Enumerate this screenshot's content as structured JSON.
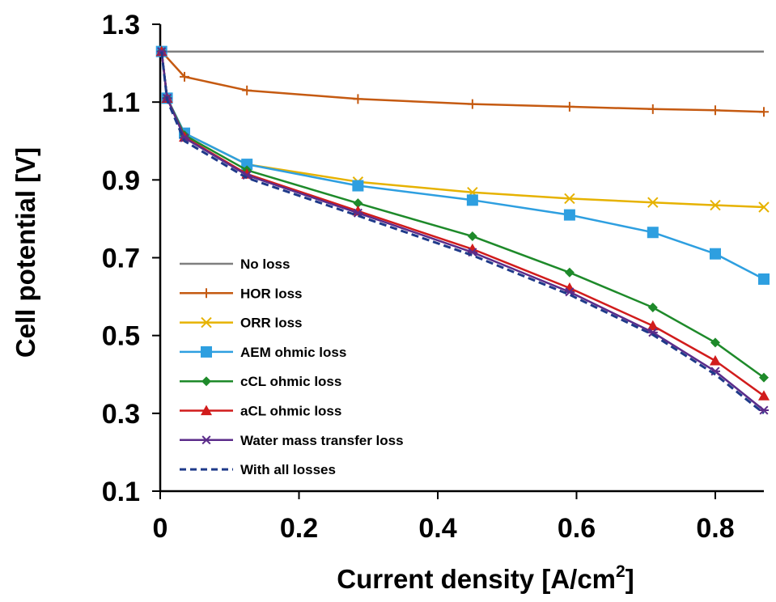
{
  "chart_data": {
    "type": "line",
    "xlabel": "Current density [A/cm",
    "xlabel_sup": "2",
    "xlabel_end": "]",
    "ylabel": "Cell potential [V]",
    "xlim": [
      0,
      0.87
    ],
    "ylim": [
      0.1,
      1.3
    ],
    "xticks": [
      0,
      0.2,
      0.4,
      0.6,
      0.8
    ],
    "xtick_labels": [
      "0",
      "0.2",
      "0.4",
      "0.6",
      "0.8"
    ],
    "yticks": [
      0.1,
      0.3,
      0.5,
      0.7,
      0.9,
      1.1,
      1.3
    ],
    "ytick_labels": [
      "0.1",
      "0.3",
      "0.5",
      "0.7",
      "0.9",
      "1.1",
      "1.3"
    ],
    "grid": false,
    "legend_position": "lower-left",
    "series": [
      {
        "name": "No loss",
        "color": "#7f7f7f",
        "marker": "none",
        "dash": false,
        "x": [
          0,
          0.87
        ],
        "y": [
          1.23,
          1.23
        ]
      },
      {
        "name": "HOR loss",
        "color": "#c55a11",
        "marker": "plus",
        "dash": false,
        "x": [
          0.002,
          0.035,
          0.125,
          0.285,
          0.45,
          0.59,
          0.71,
          0.8,
          0.87
        ],
        "y": [
          1.23,
          1.165,
          1.13,
          1.108,
          1.095,
          1.088,
          1.082,
          1.079,
          1.075
        ]
      },
      {
        "name": "ORR loss",
        "color": "#e6b200",
        "marker": "x",
        "dash": false,
        "x": [
          0.002,
          0.01,
          0.035,
          0.125,
          0.285,
          0.45,
          0.59,
          0.71,
          0.8,
          0.87
        ],
        "y": [
          1.23,
          1.11,
          1.02,
          0.94,
          0.895,
          0.868,
          0.852,
          0.842,
          0.835,
          0.83
        ]
      },
      {
        "name": "AEM ohmic loss",
        "color": "#2e9fe0",
        "marker": "square",
        "dash": false,
        "x": [
          0.002,
          0.01,
          0.035,
          0.125,
          0.285,
          0.45,
          0.59,
          0.71,
          0.8,
          0.87
        ],
        "y": [
          1.23,
          1.11,
          1.02,
          0.94,
          0.885,
          0.848,
          0.81,
          0.765,
          0.71,
          0.645
        ]
      },
      {
        "name": "cCL ohmic loss",
        "color": "#1e8a2a",
        "marker": "diamond",
        "dash": false,
        "x": [
          0.002,
          0.01,
          0.035,
          0.125,
          0.285,
          0.45,
          0.59,
          0.71,
          0.8,
          0.87
        ],
        "y": [
          1.23,
          1.11,
          1.015,
          0.925,
          0.84,
          0.755,
          0.662,
          0.572,
          0.482,
          0.392
        ]
      },
      {
        "name": "aCL ohmic loss",
        "color": "#d11c1c",
        "marker": "triangle",
        "dash": false,
        "x": [
          0.002,
          0.01,
          0.035,
          0.125,
          0.285,
          0.45,
          0.59,
          0.71,
          0.8,
          0.87
        ],
        "y": [
          1.23,
          1.11,
          1.01,
          0.915,
          0.82,
          0.722,
          0.622,
          0.525,
          0.435,
          0.345
        ]
      },
      {
        "name": "Water mass transfer loss",
        "color": "#5b2c8a",
        "marker": "star",
        "dash": false,
        "x": [
          0.002,
          0.01,
          0.035,
          0.125,
          0.285,
          0.45,
          0.59,
          0.71,
          0.8,
          0.87
        ],
        "y": [
          1.23,
          1.11,
          1.008,
          0.912,
          0.815,
          0.714,
          0.612,
          0.508,
          0.408,
          0.308
        ]
      },
      {
        "name": "With all losses",
        "color": "#1f3a8a",
        "marker": "none",
        "dash": true,
        "x": [
          0.002,
          0.01,
          0.035,
          0.125,
          0.285,
          0.45,
          0.59,
          0.71,
          0.8,
          0.87
        ],
        "y": [
          1.23,
          1.105,
          1.0,
          0.905,
          0.808,
          0.706,
          0.605,
          0.502,
          0.4,
          0.3
        ]
      }
    ]
  }
}
